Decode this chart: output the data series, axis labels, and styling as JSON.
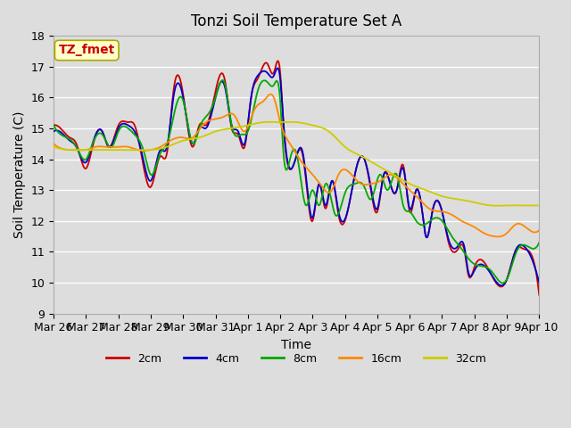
{
  "title": "Tonzi Soil Temperature Set A",
  "xlabel": "Time",
  "ylabel": "Soil Temperature (C)",
  "ylim": [
    9.0,
    18.0
  ],
  "yticks": [
    9.0,
    10.0,
    11.0,
    12.0,
    13.0,
    14.0,
    15.0,
    16.0,
    17.0,
    18.0
  ],
  "legend_label": "TZ_fmet",
  "series_labels": [
    "2cm",
    "4cm",
    "8cm",
    "16cm",
    "32cm"
  ],
  "series_colors": [
    "#cc0000",
    "#0000cc",
    "#00aa00",
    "#ff8800",
    "#cccc00"
  ],
  "x_labels": [
    "Mar 26",
    "Mar 27",
    "Mar 28",
    "Mar 29",
    "Mar 30",
    "Mar 31",
    "Apr 1",
    "Apr 2",
    "Apr 3",
    "Apr 4",
    "Apr 5",
    "Apr 6",
    "Apr 7",
    "Apr 8",
    "Apr 9",
    "Apr 10"
  ],
  "background_color": "#dddddd",
  "plot_bg_color": "#dddddd",
  "title_fontsize": 12,
  "axis_fontsize": 10,
  "tick_fontsize": 9,
  "legend_box_facecolor": "#ffffcc",
  "legend_box_edgecolor": "#aaaa00",
  "legend_text_color": "#cc0000",
  "t2_x": [
    0,
    0.3,
    0.5,
    0.7,
    1.0,
    1.2,
    1.5,
    1.7,
    2.0,
    2.3,
    2.5,
    2.7,
    3.0,
    3.3,
    3.5,
    3.7,
    4.0,
    4.3,
    4.5,
    4.7,
    5.0,
    5.3,
    5.5,
    5.7,
    5.9,
    6.1,
    6.3,
    6.6,
    6.8,
    7.0,
    7.1,
    7.2,
    7.5,
    7.7,
    8.0,
    8.2,
    8.4,
    8.6,
    8.8,
    9.1,
    9.4,
    9.6,
    9.8,
    10.0,
    10.2,
    10.4,
    10.6,
    10.8,
    11.0,
    11.2,
    11.4,
    11.5,
    11.7,
    12.0,
    12.2,
    12.5,
    12.7,
    12.8,
    13.0,
    13.5,
    14.0,
    14.3,
    14.5,
    14.8,
    15.0
  ],
  "t2_y": [
    15.1,
    14.9,
    14.7,
    14.5,
    13.7,
    14.4,
    14.9,
    14.4,
    15.1,
    15.2,
    15.1,
    14.2,
    13.1,
    14.1,
    14.2,
    16.2,
    16.1,
    14.4,
    15.1,
    15.1,
    16.2,
    16.5,
    15.0,
    14.8,
    14.4,
    16.0,
    16.6,
    17.1,
    16.8,
    16.8,
    15.1,
    14.0,
    14.1,
    14.1,
    12.0,
    13.2,
    12.4,
    13.3,
    12.2,
    12.4,
    13.9,
    14.0,
    13.0,
    12.3,
    13.5,
    13.2,
    13.0,
    13.8,
    12.3,
    13.0,
    12.2,
    11.5,
    12.3,
    12.3,
    11.3,
    11.1,
    11.0,
    10.3,
    10.5,
    10.3,
    10.1,
    11.1,
    11.1,
    10.8,
    9.6
  ],
  "t4_x": [
    0,
    0.3,
    0.5,
    0.7,
    1.0,
    1.2,
    1.5,
    1.7,
    2.0,
    2.3,
    2.5,
    2.7,
    3.0,
    3.3,
    3.5,
    3.7,
    4.0,
    4.3,
    4.5,
    4.7,
    5.0,
    5.3,
    5.5,
    5.7,
    5.9,
    6.1,
    6.3,
    6.6,
    6.8,
    7.0,
    7.1,
    7.2,
    7.5,
    7.7,
    8.0,
    8.2,
    8.4,
    8.6,
    8.8,
    9.1,
    9.4,
    9.6,
    9.8,
    10.0,
    10.2,
    10.4,
    10.6,
    10.8,
    11.0,
    11.2,
    11.4,
    11.5,
    11.7,
    12.0,
    12.2,
    12.5,
    12.7,
    12.8,
    13.0,
    13.5,
    14.0,
    14.3,
    14.5,
    14.8,
    15.0
  ],
  "t4_y": [
    14.9,
    14.8,
    14.6,
    14.4,
    13.9,
    14.5,
    14.9,
    14.4,
    15.0,
    15.1,
    14.9,
    14.3,
    13.3,
    14.3,
    14.4,
    16.0,
    16.0,
    14.5,
    15.0,
    15.0,
    16.0,
    16.3,
    15.1,
    14.9,
    14.5,
    16.0,
    16.7,
    16.8,
    16.7,
    16.6,
    15.2,
    14.1,
    14.1,
    14.2,
    12.1,
    13.2,
    12.5,
    13.3,
    12.3,
    12.4,
    13.9,
    14.0,
    13.1,
    12.4,
    13.5,
    13.2,
    13.0,
    13.7,
    12.4,
    13.0,
    12.2,
    11.5,
    12.3,
    12.3,
    11.4,
    11.2,
    11.1,
    10.4,
    10.4,
    10.3,
    10.1,
    11.1,
    11.2,
    10.7,
    10.0
  ],
  "t8_x": [
    0,
    0.4,
    0.7,
    1.0,
    1.2,
    1.5,
    1.8,
    2.0,
    2.3,
    2.5,
    2.8,
    3.0,
    3.3,
    3.5,
    3.8,
    4.0,
    4.3,
    4.5,
    4.8,
    5.0,
    5.3,
    5.5,
    5.8,
    6.0,
    6.3,
    6.6,
    6.8,
    7.0,
    7.1,
    7.3,
    7.5,
    7.8,
    8.0,
    8.2,
    8.4,
    8.7,
    9.0,
    9.3,
    9.6,
    9.8,
    10.1,
    10.3,
    10.6,
    10.8,
    11.0,
    11.2,
    11.5,
    11.8,
    12.0,
    12.3,
    12.6,
    12.8,
    13.0,
    13.5,
    14.0,
    14.3,
    14.6,
    14.8,
    15.0
  ],
  "t8_y": [
    15.1,
    14.7,
    14.4,
    14.0,
    14.5,
    14.8,
    14.4,
    14.9,
    15.0,
    14.8,
    14.2,
    13.5,
    14.2,
    14.5,
    15.8,
    15.9,
    14.5,
    15.0,
    15.5,
    16.0,
    16.4,
    15.1,
    14.8,
    14.9,
    16.2,
    16.5,
    16.4,
    15.9,
    14.2,
    14.0,
    14.2,
    12.5,
    13.0,
    12.5,
    13.2,
    12.2,
    12.9,
    13.2,
    13.1,
    12.7,
    13.5,
    13.0,
    13.5,
    12.5,
    12.3,
    12.0,
    11.9,
    12.1,
    12.0,
    11.5,
    11.1,
    10.8,
    10.6,
    10.4,
    10.1,
    11.0,
    11.2,
    11.1,
    11.3
  ],
  "t16_x": [
    0,
    0.5,
    0.8,
    1.0,
    1.3,
    1.6,
    2.0,
    2.3,
    2.6,
    3.0,
    3.3,
    3.6,
    4.0,
    4.3,
    4.6,
    5.0,
    5.3,
    5.6,
    5.9,
    6.2,
    6.5,
    6.8,
    7.0,
    7.3,
    7.6,
    8.0,
    8.3,
    8.6,
    8.8,
    9.2,
    9.5,
    9.8,
    10.1,
    10.4,
    10.7,
    11.0,
    11.3,
    11.6,
    12.0,
    12.3,
    12.6,
    13.0,
    13.3,
    13.6,
    14.0,
    14.3,
    14.7,
    15.0
  ],
  "t16_y": [
    14.5,
    14.3,
    14.3,
    14.3,
    14.4,
    14.4,
    14.4,
    14.4,
    14.3,
    14.3,
    14.4,
    14.6,
    14.7,
    14.7,
    15.1,
    15.3,
    15.4,
    15.4,
    14.9,
    15.6,
    15.9,
    16.0,
    15.2,
    14.5,
    14.0,
    13.5,
    13.1,
    13.0,
    13.5,
    13.5,
    13.2,
    13.2,
    13.3,
    13.5,
    13.3,
    13.0,
    12.7,
    12.4,
    12.3,
    12.2,
    12.0,
    11.8,
    11.6,
    11.5,
    11.6,
    11.9,
    11.7,
    11.7
  ],
  "t32_x": [
    0,
    0.5,
    1.0,
    1.5,
    2.0,
    2.5,
    3.0,
    3.5,
    4.0,
    4.5,
    5.0,
    5.5,
    6.0,
    6.5,
    7.0,
    7.5,
    8.0,
    8.5,
    9.0,
    9.5,
    10.0,
    10.5,
    11.0,
    11.5,
    12.0,
    12.5,
    13.0,
    13.5,
    14.0,
    14.5,
    15.0
  ],
  "t32_y": [
    14.4,
    14.3,
    14.3,
    14.3,
    14.3,
    14.3,
    14.3,
    14.4,
    14.6,
    14.7,
    14.9,
    15.0,
    15.1,
    15.2,
    15.2,
    15.2,
    15.1,
    14.9,
    14.4,
    14.1,
    13.8,
    13.5,
    13.2,
    13.0,
    12.8,
    12.7,
    12.6,
    12.5,
    12.5,
    12.5,
    12.5
  ]
}
